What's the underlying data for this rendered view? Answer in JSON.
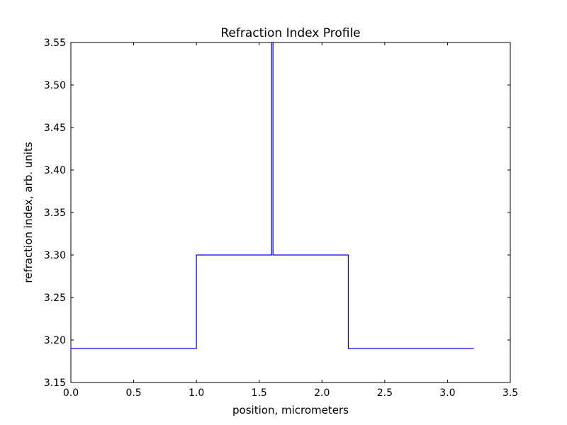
{
  "chart_data": {
    "type": "line",
    "title": "Refraction Index Profile",
    "xlabel": "position, micrometers",
    "ylabel": "refraction index, arb. units",
    "xlim": [
      0.0,
      3.5
    ],
    "ylim": [
      3.15,
      3.55
    ],
    "xticks": [
      0.0,
      0.5,
      1.0,
      1.5,
      2.0,
      2.5,
      3.0,
      3.5
    ],
    "xtick_labels": [
      "0.0",
      "0.5",
      "1.0",
      "1.5",
      "2.0",
      "2.5",
      "3.0",
      "3.5"
    ],
    "yticks": [
      3.15,
      3.2,
      3.25,
      3.3,
      3.35,
      3.4,
      3.45,
      3.5,
      3.55
    ],
    "ytick_labels": [
      "3.15",
      "3.20",
      "3.25",
      "3.30",
      "3.35",
      "3.40",
      "3.45",
      "3.50",
      "3.55"
    ],
    "grid": false,
    "line_color": "#0000ff",
    "series": [
      {
        "x": [
          0.0,
          1.0,
          1.0,
          1.6,
          1.6,
          1.61,
          1.61,
          2.21,
          2.21,
          3.21
        ],
        "y": [
          3.19,
          3.19,
          3.3,
          3.3,
          3.55,
          3.55,
          3.3,
          3.3,
          3.19,
          3.19
        ]
      }
    ]
  }
}
